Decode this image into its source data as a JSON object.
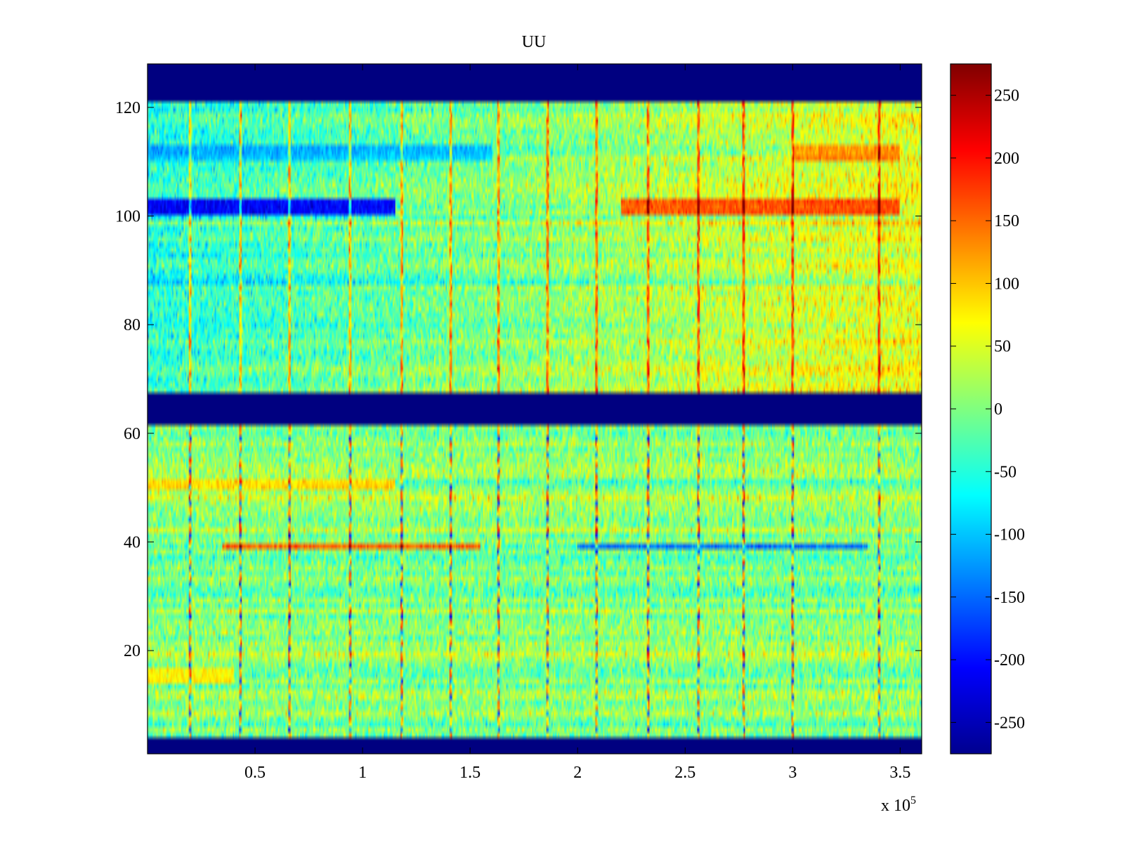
{
  "chart_data": {
    "type": "heatmap",
    "title": "UU",
    "xlabel": "",
    "ylabel": "",
    "x_range": [
      0,
      360000
    ],
    "y_range": [
      1,
      128
    ],
    "x_ticks": [
      50000,
      100000,
      150000,
      200000,
      250000,
      300000,
      350000
    ],
    "x_tick_labels": [
      "0.5",
      "1",
      "1.5",
      "2",
      "2.5",
      "3",
      "3.5"
    ],
    "x_multiplier_label": "x 10",
    "x_multiplier_exponent": "5",
    "y_ticks": [
      20,
      40,
      60,
      80,
      100,
      120
    ],
    "y_tick_labels": [
      "20",
      "40",
      "60",
      "80",
      "100",
      "120"
    ],
    "colormap": "jet",
    "color_range": [
      -275,
      275
    ],
    "colorbar_ticks": [
      250,
      200,
      150,
      100,
      50,
      0,
      -50,
      -100,
      -150,
      -200,
      -250
    ],
    "colorbar_tick_labels": [
      "250",
      "200",
      "150",
      "100",
      "50",
      "0",
      "-50",
      "-100",
      "-150",
      "-200",
      "-250"
    ],
    "masked_rows": [
      [
        1,
        3
      ],
      [
        62,
        67
      ],
      [
        122,
        128
      ]
    ],
    "masked_value": -275,
    "vertical_events_x": [
      20000,
      43000,
      66000,
      94000,
      118000,
      141000,
      163000,
      186000,
      209000,
      233000,
      256000,
      277000,
      300000,
      340000
    ],
    "features": [
      {
        "rows": [
          101,
          103
        ],
        "x_range": [
          0,
          115000
        ],
        "value": -230
      },
      {
        "rows": [
          101,
          103
        ],
        "x_range": [
          220000,
          350000
        ],
        "value": 180
      },
      {
        "rows": [
          111,
          113
        ],
        "x_range": [
          0,
          160000
        ],
        "value": -110
      },
      {
        "rows": [
          111,
          113
        ],
        "x_range": [
          300000,
          350000
        ],
        "value": 140
      },
      {
        "rows": [
          39,
          39
        ],
        "x_range": [
          35000,
          155000
        ],
        "value": 190
      },
      {
        "rows": [
          39,
          39
        ],
        "x_range": [
          200000,
          335000
        ],
        "value": -160
      },
      {
        "rows": [
          50,
          51
        ],
        "x_range": [
          0,
          115000
        ],
        "value": 110
      },
      {
        "rows": [
          14,
          16
        ],
        "x_range": [
          0,
          40000
        ],
        "value": 90
      }
    ]
  }
}
